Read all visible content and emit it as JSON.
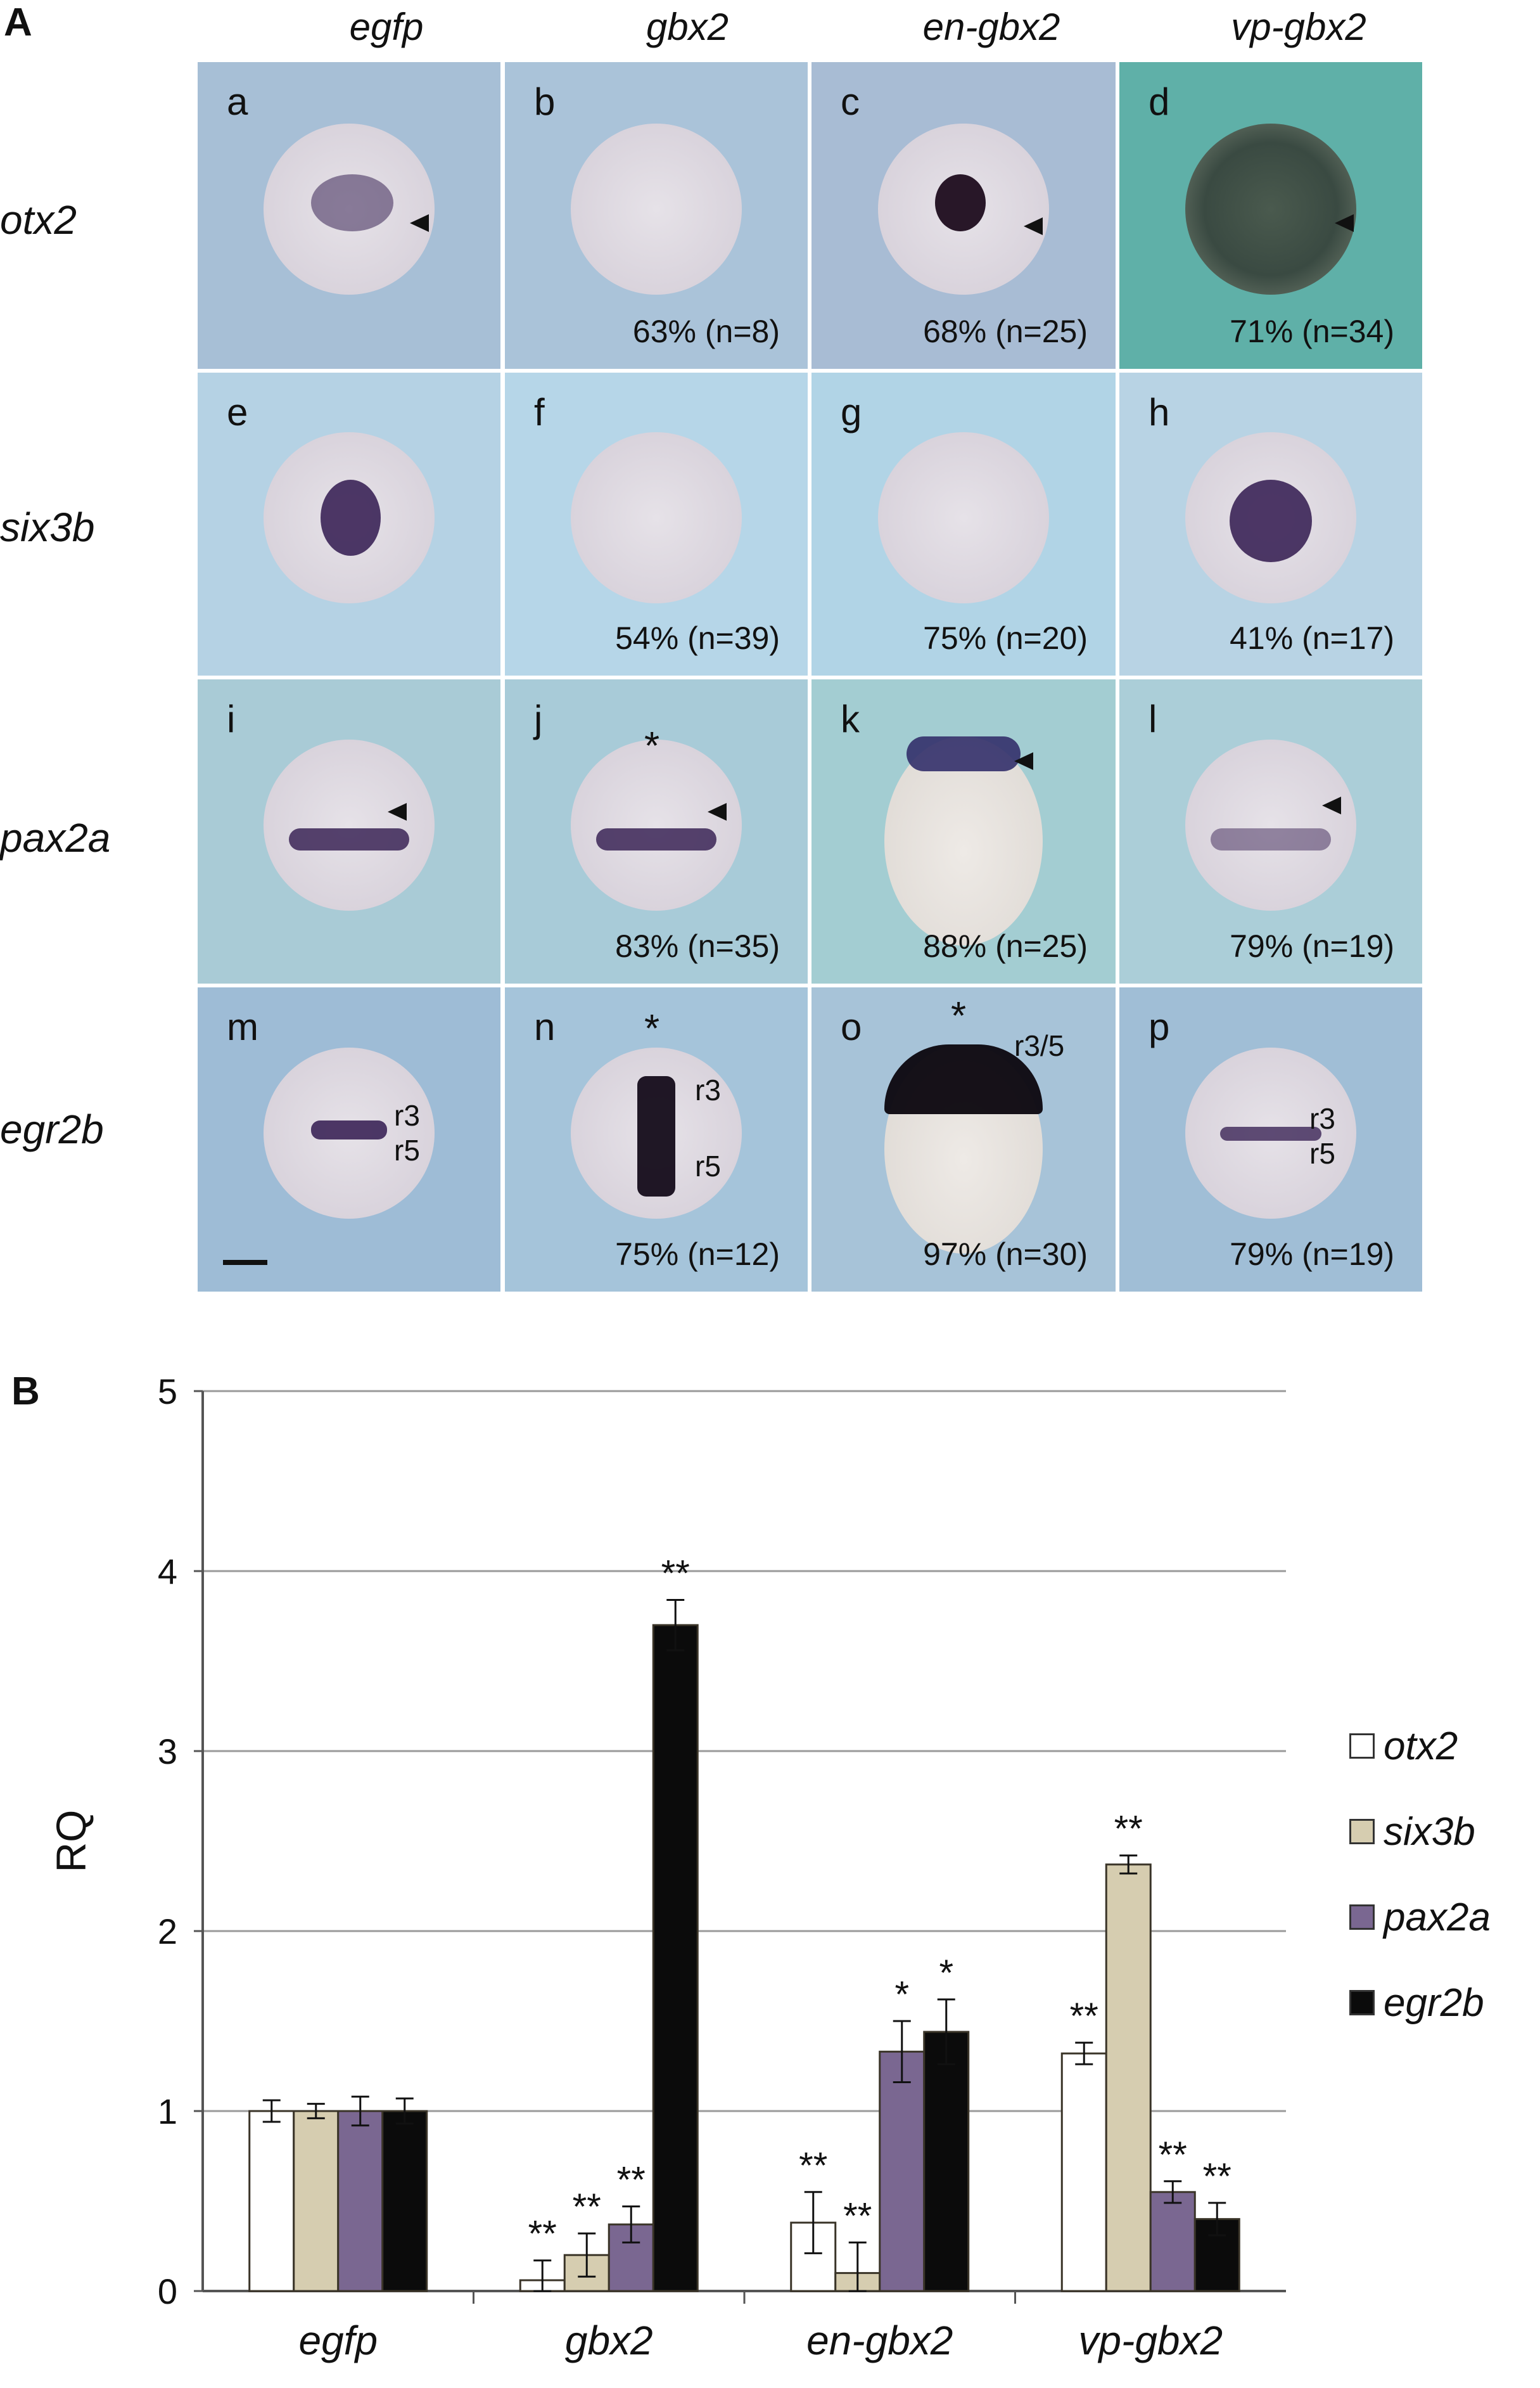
{
  "panel_a": {
    "letter": "A",
    "columns": [
      "egfp",
      "gbx2",
      "en-gbx2",
      "vp-gbx2"
    ],
    "rows": [
      "otx2",
      "six3b",
      "pax2a",
      "egr2b"
    ],
    "cells": [
      {
        "label": "a",
        "pct": ""
      },
      {
        "label": "b",
        "pct": "63% (n=8)"
      },
      {
        "label": "c",
        "pct": "68% (n=25)"
      },
      {
        "label": "d",
        "pct": "71% (n=34)"
      },
      {
        "label": "e",
        "pct": ""
      },
      {
        "label": "f",
        "pct": "54% (n=39)"
      },
      {
        "label": "g",
        "pct": "75% (n=20)"
      },
      {
        "label": "h",
        "pct": "41% (n=17)"
      },
      {
        "label": "i",
        "pct": ""
      },
      {
        "label": "j",
        "pct": "83% (n=35)"
      },
      {
        "label": "k",
        "pct": "88% (n=25)"
      },
      {
        "label": "l",
        "pct": "79% (n=19)"
      },
      {
        "label": "m",
        "pct": ""
      },
      {
        "label": "n",
        "pct": "75% (n=12)"
      },
      {
        "label": "o",
        "pct": "97% (n=30)"
      },
      {
        "label": "p",
        "pct": "79% (n=19)"
      }
    ],
    "annotations": {
      "asterisk": "*",
      "r3": "r3",
      "r5": "r5",
      "r35": "r3/5"
    }
  },
  "panel_b": {
    "letter": "B"
  },
  "chart_data": {
    "type": "bar",
    "categories": [
      "egfp",
      "gbx2",
      "en-gbx2",
      "vp-gbx2"
    ],
    "ylabel": "RQ",
    "xlabel": "",
    "ylim": [
      0,
      5
    ],
    "yticks": [
      "0",
      "1",
      "2",
      "3",
      "4",
      "5"
    ],
    "grid": true,
    "legend_position": "right",
    "series": [
      {
        "name": "otx2",
        "color": "#ffffff",
        "values": [
          1.0,
          0.06,
          0.38,
          1.32
        ],
        "errors": [
          0.06,
          0.11,
          0.17,
          0.06
        ],
        "sig": [
          "",
          "**",
          "**",
          "**"
        ]
      },
      {
        "name": "six3b",
        "color": "#d6cdb0",
        "values": [
          1.0,
          0.2,
          0.1,
          2.37
        ],
        "errors": [
          0.04,
          0.12,
          0.17,
          0.05
        ],
        "sig": [
          "",
          "**",
          "**",
          "**"
        ]
      },
      {
        "name": "pax2a",
        "color": "#7a6791",
        "values": [
          1.0,
          0.37,
          1.33,
          0.55
        ],
        "errors": [
          0.08,
          0.1,
          0.17,
          0.06
        ],
        "sig": [
          "",
          "**",
          "*",
          "**"
        ]
      },
      {
        "name": "egr2b",
        "color": "#0b0b0b",
        "values": [
          1.0,
          3.7,
          1.44,
          0.4
        ],
        "errors": [
          0.07,
          0.14,
          0.18,
          0.09
        ],
        "sig": [
          "",
          "**",
          "*",
          "**"
        ]
      }
    ]
  }
}
